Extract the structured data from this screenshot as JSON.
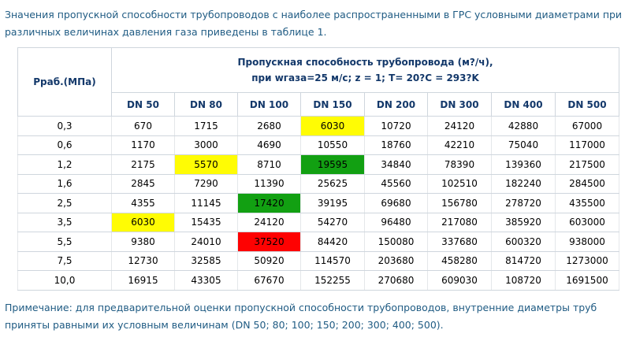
{
  "intro_text": "Значения пропускной способности трубопроводов с наиболее распространенными в ГРС условными диаметрами при различных величинах давления газа приведены в таблице 1.",
  "table": {
    "pressure_header": "Рраб.(МПа)",
    "caption_line1": "Пропускная способность трубопровода (м?/ч),",
    "caption_line2": "при wгаза=25 м/с; z = 1; T= 20?C = 293?K",
    "columns": [
      "DN 50",
      "DN 80",
      "DN 100",
      "DN 150",
      "DN 200",
      "DN 300",
      "DN 400",
      "DN 500"
    ],
    "rows": [
      {
        "pressure": "0,3",
        "values": [
          "670",
          "1715",
          "2680",
          "6030",
          "10720",
          "24120",
          "42880",
          "67000"
        ]
      },
      {
        "pressure": "0,6",
        "values": [
          "1170",
          "3000",
          "4690",
          "10550",
          "18760",
          "42210",
          "75040",
          "117000"
        ]
      },
      {
        "pressure": "1,2",
        "values": [
          "2175",
          "5570",
          "8710",
          "19595",
          "34840",
          "78390",
          "139360",
          "217500"
        ]
      },
      {
        "pressure": "1,6",
        "values": [
          "2845",
          "7290",
          "11390",
          "25625",
          "45560",
          "102510",
          "182240",
          "284500"
        ]
      },
      {
        "pressure": "2,5",
        "values": [
          "4355",
          "11145",
          "17420",
          "39195",
          "69680",
          "156780",
          "278720",
          "435500"
        ]
      },
      {
        "pressure": "3,5",
        "values": [
          "6030",
          "15435",
          "24120",
          "54270",
          "96480",
          "217080",
          "385920",
          "603000"
        ]
      },
      {
        "pressure": "5,5",
        "values": [
          "9380",
          "24010",
          "37520",
          "84420",
          "150080",
          "337680",
          "600320",
          "938000"
        ]
      },
      {
        "pressure": "7,5",
        "values": [
          "12730",
          "32585",
          "50920",
          "114570",
          "203680",
          "458280",
          "814720",
          "1273000"
        ]
      },
      {
        "pressure": "10,0",
        "values": [
          "16915",
          "43305",
          "67670",
          "152255",
          "270680",
          "609030",
          "108720",
          "1691500"
        ]
      }
    ],
    "highlights": {
      "yellow": "#fffc04",
      "green": "#12a012",
      "red": "#fe0202",
      "cells": [
        {
          "row": 0,
          "col": 3,
          "color": "yellow"
        },
        {
          "row": 2,
          "col": 1,
          "color": "yellow"
        },
        {
          "row": 2,
          "col": 3,
          "color": "green"
        },
        {
          "row": 4,
          "col": 2,
          "color": "green"
        },
        {
          "row": 5,
          "col": 0,
          "color": "yellow"
        },
        {
          "row": 6,
          "col": 2,
          "color": "red"
        }
      ]
    }
  },
  "note_text": "Примечание: для предварительной оценки пропускной способности трубопроводов, внутренние диаметры труб приняты равными их условным величинам (DN 50; 80; 100; 150; 200; 300; 400; 500)."
}
